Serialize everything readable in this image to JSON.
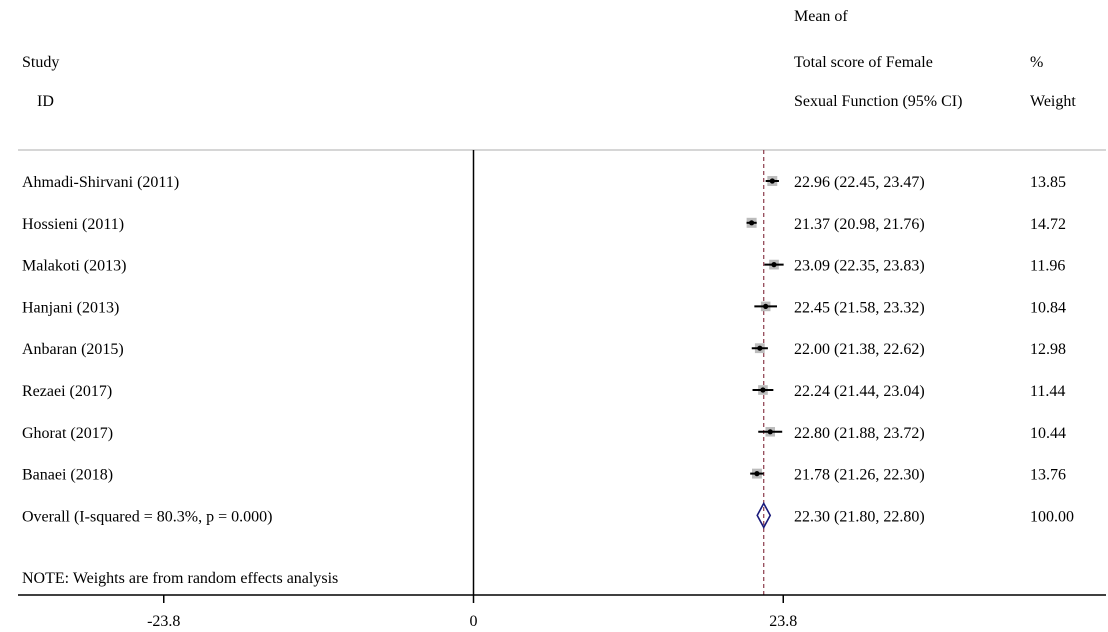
{
  "header": {
    "study_line1": "Study",
    "study_line2": "ID",
    "effect_line1": "Mean of",
    "effect_line2": "Total score of Female",
    "effect_line3": "Sexual Function (95% CI)",
    "weight_line1": "%",
    "weight_line2": "Weight"
  },
  "note": "NOTE: Weights are from random effects analysis",
  "chart_data": {
    "type": "forest",
    "xlim": [
      -35,
      48.6
    ],
    "xticks": [
      {
        "value": -23.8,
        "label": "-23.8"
      },
      {
        "value": 0,
        "label": "0"
      },
      {
        "value": 23.8,
        "label": "23.8"
      }
    ],
    "null_line": 0,
    "overall_line": 22.3,
    "studies": [
      {
        "label": "Ahmadi-Shirvani (2011)",
        "mean": 22.96,
        "lower": 22.45,
        "upper": 23.47,
        "ci_text": "22.96 (22.45, 23.47)",
        "weight": 13.85,
        "weight_text": "13.85"
      },
      {
        "label": "Hossieni (2011)",
        "mean": 21.37,
        "lower": 20.98,
        "upper": 21.76,
        "ci_text": "21.37 (20.98, 21.76)",
        "weight": 14.72,
        "weight_text": "14.72"
      },
      {
        "label": "Malakoti (2013)",
        "mean": 23.09,
        "lower": 22.35,
        "upper": 23.83,
        "ci_text": "23.09 (22.35, 23.83)",
        "weight": 11.96,
        "weight_text": "11.96"
      },
      {
        "label": "Hanjani (2013)",
        "mean": 22.45,
        "lower": 21.58,
        "upper": 23.32,
        "ci_text": "22.45 (21.58, 23.32)",
        "weight": 10.84,
        "weight_text": "10.84"
      },
      {
        "label": "Anbaran (2015)",
        "mean": 22.0,
        "lower": 21.38,
        "upper": 22.62,
        "ci_text": "22.00 (21.38, 22.62)",
        "weight": 12.98,
        "weight_text": "12.98"
      },
      {
        "label": "Rezaei (2017)",
        "mean": 22.24,
        "lower": 21.44,
        "upper": 23.04,
        "ci_text": "22.24 (21.44, 23.04)",
        "weight": 11.44,
        "weight_text": "11.44"
      },
      {
        "label": "Ghorat (2017)",
        "mean": 22.8,
        "lower": 21.88,
        "upper": 23.72,
        "ci_text": "22.80 (21.88, 23.72)",
        "weight": 10.44,
        "weight_text": "10.44"
      },
      {
        "label": "Banaei (2018)",
        "mean": 21.78,
        "lower": 21.26,
        "upper": 22.3,
        "ci_text": "21.78 (21.26, 22.30)",
        "weight": 13.76,
        "weight_text": "13.76"
      }
    ],
    "overall": {
      "label": "Overall (I-squared = 80.3%, p = 0.000)",
      "mean": 22.3,
      "lower": 21.8,
      "upper": 22.8,
      "ci_text": "22.30 (21.80, 22.80)",
      "weight": 100.0,
      "weight_text": "100.00"
    },
    "colors": {
      "marker": "#000000",
      "weight_box": "#bcbcbc",
      "overall_line": "#8b3a4a",
      "diamond": "#1a1a7a",
      "divider": "#c8c8c8"
    }
  }
}
